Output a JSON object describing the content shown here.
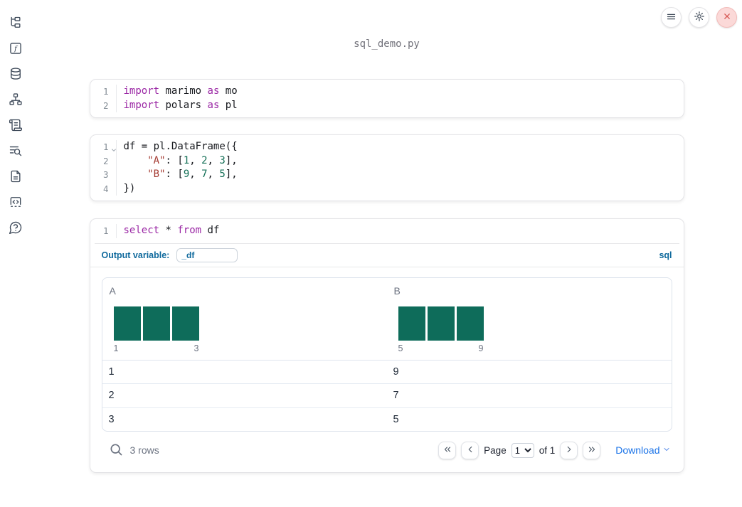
{
  "window": {
    "title": "sql_demo.py"
  },
  "topbar": {
    "buttons": [
      {
        "icon": "menu-icon"
      },
      {
        "icon": "gear-icon"
      },
      {
        "icon": "close-icon"
      }
    ]
  },
  "sidebar": {
    "icons": [
      "file-tree-icon",
      "function-square-icon",
      "database-icon",
      "dependency-graph-icon",
      "scroll-icon",
      "list-search-icon",
      "document-icon",
      "code-snippet-icon",
      "help-circle-icon"
    ]
  },
  "cells": [
    {
      "type": "code",
      "lines": [
        {
          "n": "1",
          "tokens": [
            {
              "t": "import",
              "c": "kw"
            },
            {
              "t": " marimo ",
              "c": "pl"
            },
            {
              "t": "as",
              "c": "kw"
            },
            {
              "t": " mo",
              "c": "pl"
            }
          ]
        },
        {
          "n": "2",
          "tokens": [
            {
              "t": "import",
              "c": "kw"
            },
            {
              "t": " polars ",
              "c": "pl"
            },
            {
              "t": "as",
              "c": "kw"
            },
            {
              "t": " pl",
              "c": "pl"
            }
          ]
        }
      ]
    },
    {
      "type": "code",
      "lines": [
        {
          "n": "1",
          "fold": true,
          "tokens": [
            {
              "t": "df = pl.DataFrame({",
              "c": "pl"
            }
          ]
        },
        {
          "n": "2",
          "tokens": [
            {
              "t": "    ",
              "c": "pl"
            },
            {
              "t": "\"A\"",
              "c": "str"
            },
            {
              "t": ": [",
              "c": "pl"
            },
            {
              "t": "1",
              "c": "num"
            },
            {
              "t": ", ",
              "c": "pl"
            },
            {
              "t": "2",
              "c": "num"
            },
            {
              "t": ", ",
              "c": "pl"
            },
            {
              "t": "3",
              "c": "num"
            },
            {
              "t": "],",
              "c": "pl"
            }
          ]
        },
        {
          "n": "3",
          "tokens": [
            {
              "t": "    ",
              "c": "pl"
            },
            {
              "t": "\"B\"",
              "c": "str"
            },
            {
              "t": ": [",
              "c": "pl"
            },
            {
              "t": "9",
              "c": "num"
            },
            {
              "t": ", ",
              "c": "pl"
            },
            {
              "t": "7",
              "c": "num"
            },
            {
              "t": ", ",
              "c": "pl"
            },
            {
              "t": "5",
              "c": "num"
            },
            {
              "t": "],",
              "c": "pl"
            }
          ]
        },
        {
          "n": "4",
          "tokens": [
            {
              "t": "})",
              "c": "pl"
            }
          ]
        }
      ]
    },
    {
      "type": "sql",
      "lines": [
        {
          "n": "1",
          "tokens": [
            {
              "t": "select",
              "c": "kw"
            },
            {
              "t": " * ",
              "c": "pl"
            },
            {
              "t": "from",
              "c": "kw"
            },
            {
              "t": " df",
              "c": "pl"
            }
          ]
        }
      ],
      "output_variable_label": "Output variable:",
      "output_variable_value": "_df",
      "language_badge": "sql"
    }
  ],
  "table": {
    "columns": [
      {
        "name": "A",
        "summary": {
          "bar_count": 3,
          "min_label": "1",
          "max_label": "3"
        }
      },
      {
        "name": "B",
        "summary": {
          "bar_count": 3,
          "min_label": "5",
          "max_label": "9"
        }
      }
    ],
    "rows": [
      [
        "1",
        "9"
      ],
      [
        "2",
        "7"
      ],
      [
        "3",
        "5"
      ]
    ],
    "footer": {
      "row_count": "3 rows",
      "page_label": "Page",
      "page_value": "1",
      "of_label": "of 1",
      "download_label": "Download"
    }
  },
  "colors": {
    "keyword": "#9b28a5",
    "string": "#a43a31",
    "number": "#116e55",
    "code_text": "#16181d",
    "histogram_bar": "#0e6c5a",
    "download_link": "#1a73e8",
    "sql_accent": "#106a9d",
    "close_button_bg": "#fbd9d8",
    "close_button_icon": "#d4524e"
  }
}
